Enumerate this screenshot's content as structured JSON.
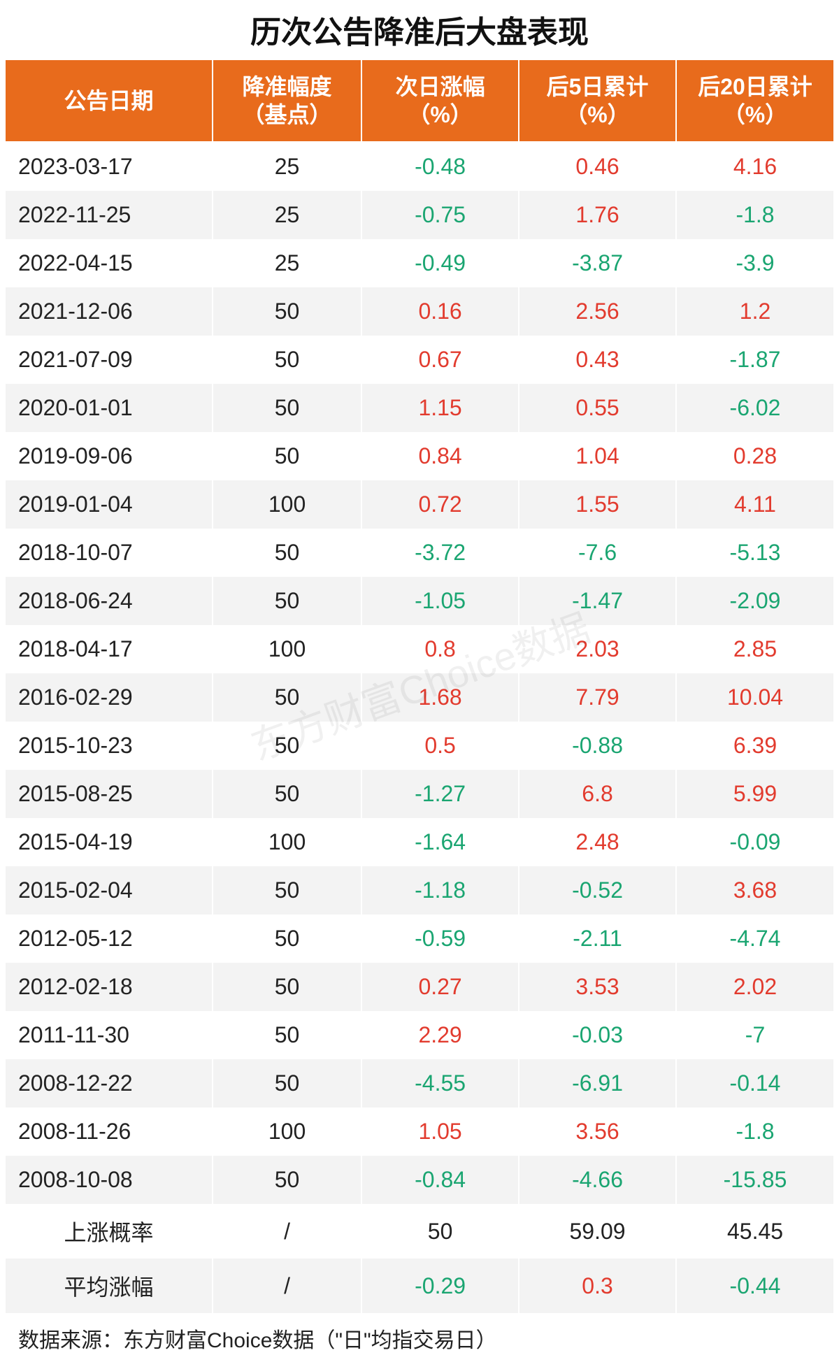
{
  "title": "历次公告降准后大盘表现",
  "style": {
    "title_fontsize": 44,
    "header_bg": "#e86b1c",
    "header_fontsize": 32,
    "cell_fontsize": 32,
    "row_even_bg": "#f3f3f3",
    "row_odd_bg": "#ffffff",
    "pos_color": "#e23b2e",
    "neg_color": "#1aa571",
    "text_color": "#222222",
    "col_widths": [
      "25%",
      "18%",
      "19%",
      "19%",
      "19%"
    ]
  },
  "columns": [
    "公告日期",
    "降准幅度\n（基点）",
    "次日涨幅\n（%）",
    "后5日累计\n（%）",
    "后20日累计\n（%）"
  ],
  "rows": [
    {
      "date": "2023-03-17",
      "bp": "25",
      "d1": "-0.48",
      "d5": "0.46",
      "d20": "4.16"
    },
    {
      "date": "2022-11-25",
      "bp": "25",
      "d1": "-0.75",
      "d5": "1.76",
      "d20": "-1.8"
    },
    {
      "date": "2022-04-15",
      "bp": "25",
      "d1": "-0.49",
      "d5": "-3.87",
      "d20": "-3.9"
    },
    {
      "date": "2021-12-06",
      "bp": "50",
      "d1": "0.16",
      "d5": "2.56",
      "d20": "1.2"
    },
    {
      "date": "2021-07-09",
      "bp": "50",
      "d1": "0.67",
      "d5": "0.43",
      "d20": "-1.87"
    },
    {
      "date": "2020-01-01",
      "bp": "50",
      "d1": "1.15",
      "d5": "0.55",
      "d20": "-6.02"
    },
    {
      "date": "2019-09-06",
      "bp": "50",
      "d1": "0.84",
      "d5": "1.04",
      "d20": "0.28"
    },
    {
      "date": "2019-01-04",
      "bp": "100",
      "d1": "0.72",
      "d5": "1.55",
      "d20": "4.11"
    },
    {
      "date": "2018-10-07",
      "bp": "50",
      "d1": "-3.72",
      "d5": "-7.6",
      "d20": "-5.13"
    },
    {
      "date": "2018-06-24",
      "bp": "50",
      "d1": "-1.05",
      "d5": "-1.47",
      "d20": "-2.09"
    },
    {
      "date": "2018-04-17",
      "bp": "100",
      "d1": "0.8",
      "d5": "2.03",
      "d20": "2.85"
    },
    {
      "date": "2016-02-29",
      "bp": "50",
      "d1": "1.68",
      "d5": "7.79",
      "d20": "10.04"
    },
    {
      "date": "2015-10-23",
      "bp": "50",
      "d1": "0.5",
      "d5": "-0.88",
      "d20": "6.39"
    },
    {
      "date": "2015-08-25",
      "bp": "50",
      "d1": "-1.27",
      "d5": "6.8",
      "d20": "5.99"
    },
    {
      "date": "2015-04-19",
      "bp": "100",
      "d1": "-1.64",
      "d5": "2.48",
      "d20": "-0.09"
    },
    {
      "date": "2015-02-04",
      "bp": "50",
      "d1": "-1.18",
      "d5": "-0.52",
      "d20": "3.68"
    },
    {
      "date": "2012-05-12",
      "bp": "50",
      "d1": "-0.59",
      "d5": "-2.11",
      "d20": "-4.74"
    },
    {
      "date": "2012-02-18",
      "bp": "50",
      "d1": "0.27",
      "d5": "3.53",
      "d20": "2.02"
    },
    {
      "date": "2011-11-30",
      "bp": "50",
      "d1": "2.29",
      "d5": "-0.03",
      "d20": "-7"
    },
    {
      "date": "2008-12-22",
      "bp": "50",
      "d1": "-4.55",
      "d5": "-6.91",
      "d20": "-0.14"
    },
    {
      "date": "2008-11-26",
      "bp": "100",
      "d1": "1.05",
      "d5": "3.56",
      "d20": "-1.8"
    },
    {
      "date": "2008-10-08",
      "bp": "50",
      "d1": "-0.84",
      "d5": "-4.66",
      "d20": "-15.85"
    }
  ],
  "summary": [
    {
      "label": "上涨概率",
      "bp": "/",
      "d1": "50",
      "d5": "59.09",
      "d20": "45.45",
      "colored": false
    },
    {
      "label": "平均涨幅",
      "bp": "/",
      "d1": "-0.29",
      "d5": "0.3",
      "d20": "-0.44",
      "colored": true
    }
  ],
  "footer": "数据来源：东方财富Choice数据（\"日\"均指交易日）",
  "watermark": "东方财富Choice数据"
}
